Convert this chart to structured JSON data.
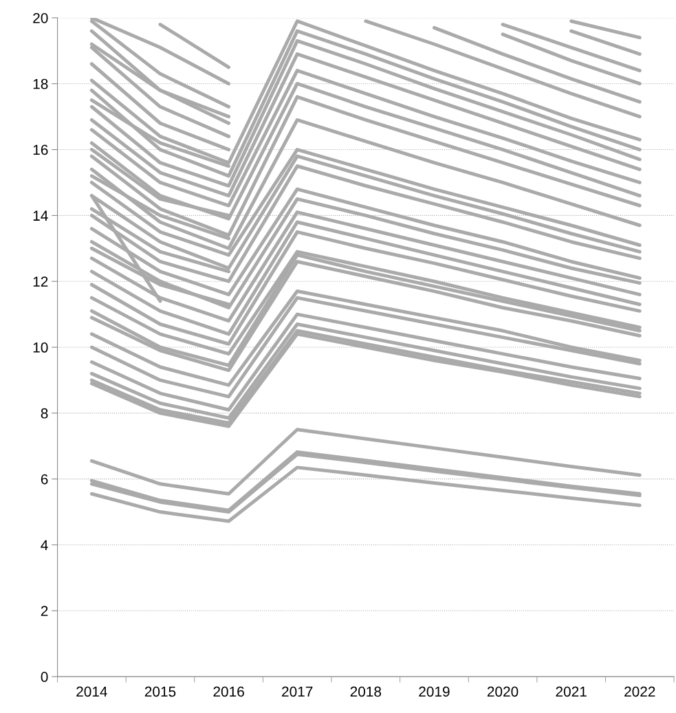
{
  "chart_data": {
    "type": "line",
    "categories": [
      "2014",
      "2015",
      "2016",
      "2017",
      "2018",
      "2019",
      "2020",
      "2021",
      "2022"
    ],
    "ylim": [
      0,
      20
    ],
    "yticks": [
      0,
      2,
      4,
      6,
      8,
      10,
      12,
      14,
      16,
      18,
      20
    ],
    "grid": "y",
    "marker": "none",
    "line_style": "solid",
    "series": [
      {
        "color": "#aaaaaa",
        "values": [
          6.55,
          5.85,
          5.55,
          7.5,
          7.22,
          6.94,
          6.66,
          6.38,
          6.12
        ]
      },
      {
        "color": "#aaaaaa",
        "values": [
          5.95,
          5.35,
          5.05,
          6.82,
          6.56,
          6.3,
          6.04,
          5.78,
          5.55
        ]
      },
      {
        "color": "#aaaaaa",
        "values": [
          5.85,
          5.3,
          5.0,
          6.75,
          6.5,
          6.24,
          5.99,
          5.74,
          5.5
        ]
      },
      {
        "color": "#aaaaaa",
        "values": [
          5.55,
          5.0,
          4.72,
          6.35,
          6.12,
          5.88,
          5.65,
          5.42,
          5.2
        ]
      },
      {
        "color": "#aaaaaa",
        "values": [
          8.9,
          8.0,
          7.6,
          10.4,
          10.0,
          9.6,
          9.25,
          8.85,
          8.5
        ]
      },
      {
        "color": "#aaaaaa",
        "values": [
          9.0,
          8.1,
          7.7,
          10.5,
          10.1,
          9.7,
          9.3,
          8.95,
          8.6
        ]
      },
      {
        "color": "#aaaaaa",
        "values": [
          9.2,
          8.3,
          7.85,
          10.7,
          10.3,
          9.9,
          9.5,
          9.1,
          8.75
        ]
      },
      {
        "color": "#aaaaaa",
        "values": [
          9.55,
          8.6,
          8.1,
          11.0,
          10.6,
          10.2,
          9.8,
          9.4,
          9.05
        ]
      },
      {
        "color": "#aaaaaa",
        "values": [
          10.0,
          9.0,
          8.5,
          11.5,
          11.1,
          10.7,
          10.3,
          9.9,
          9.5
        ]
      },
      {
        "color": "#aaaaaa",
        "values": [
          10.4,
          9.4,
          8.85,
          11.7,
          11.3,
          10.9,
          10.5,
          10.0,
          9.6
        ]
      },
      {
        "color": "#aaaaaa",
        "values": [
          10.9,
          9.9,
          9.3,
          12.6,
          12.15,
          11.7,
          11.2,
          10.8,
          10.35
        ]
      },
      {
        "color": "#aaaaaa",
        "values": [
          11.1,
          10.0,
          9.45,
          12.8,
          12.3,
          11.85,
          11.4,
          10.95,
          10.5
        ]
      },
      {
        "color": "#aaaaaa",
        "values": [
          11.5,
          10.4,
          9.8,
          12.9,
          12.45,
          12.0,
          11.5,
          11.05,
          10.6
        ]
      },
      {
        "color": "#aaaaaa",
        "values": [
          11.9,
          10.7,
          10.1,
          13.5,
          13.0,
          12.55,
          12.05,
          11.55,
          11.1
        ]
      },
      {
        "color": "#aaaaaa",
        "values": [
          12.3,
          11.1,
          10.4,
          13.8,
          13.3,
          12.8,
          12.3,
          11.8,
          11.3
        ]
      },
      {
        "color": "#aaaaaa",
        "values": [
          12.7,
          11.5,
          10.8,
          14.1,
          13.6,
          13.1,
          12.6,
          12.1,
          11.6
        ]
      },
      {
        "color": "#aaaaaa",
        "values": [
          13.2,
          12.0,
          11.2,
          14.5,
          14.0,
          13.45,
          12.95,
          12.4,
          11.95
        ]
      },
      {
        "color": "#aaaaaa",
        "values": [
          13.6,
          12.3,
          11.6,
          14.8,
          14.25,
          13.7,
          13.2,
          12.6,
          12.1
        ]
      },
      {
        "color": "#aaaaaa",
        "values": [
          14.0,
          12.6,
          12.0,
          15.5,
          14.9,
          14.35,
          13.8,
          13.2,
          12.7
        ]
      },
      {
        "color": "#aaaaaa",
        "values": [
          14.6,
          13.2,
          12.4,
          15.8,
          15.2,
          14.6,
          14.05,
          13.45,
          12.9
        ]
      },
      {
        "color": "#aaaaaa",
        "values": [
          14.6,
          11.4,
          null,
          null,
          null,
          null,
          null,
          null,
          null
        ]
      },
      {
        "color": "#aaaaaa",
        "values": [
          15.0,
          13.5,
          12.8,
          16.0,
          15.4,
          14.8,
          14.25,
          13.7,
          13.1
        ]
      },
      {
        "color": "#aaaaaa",
        "values": [
          15.4,
          13.8,
          13.0,
          16.9,
          16.25,
          15.6,
          15.0,
          14.35,
          13.7
        ]
      },
      {
        "color": "#aaaaaa",
        "values": [
          15.8,
          14.2,
          13.4,
          17.6,
          16.9,
          16.25,
          15.6,
          14.95,
          14.3
        ]
      },
      {
        "color": "#aaaaaa",
        "values": [
          16.2,
          14.6,
          13.9,
          18.0,
          17.3,
          16.65,
          16.0,
          15.3,
          14.6
        ]
      },
      {
        "color": "#aaaaaa",
        "values": [
          16.6,
          15.0,
          14.3,
          18.4,
          17.7,
          17.0,
          16.35,
          15.65,
          15.0
        ]
      },
      {
        "color": "#aaaaaa",
        "values": [
          16.9,
          15.3,
          14.6,
          18.9,
          18.2,
          17.5,
          16.8,
          16.1,
          15.4
        ]
      },
      {
        "color": "#aaaaaa",
        "values": [
          17.3,
          15.6,
          14.9,
          19.3,
          18.6,
          17.85,
          17.15,
          16.45,
          15.7
        ]
      },
      {
        "color": "#aaaaaa",
        "values": [
          17.8,
          16.0,
          15.2,
          19.6,
          18.9,
          18.15,
          17.45,
          16.7,
          16.0
        ]
      },
      {
        "color": "#aaaaaa",
        "values": [
          18.1,
          16.4,
          15.6,
          19.9,
          19.15,
          18.4,
          17.7,
          16.95,
          16.3
        ]
      },
      {
        "color": "#aaaaaa",
        "values": [
          18.6,
          16.8,
          16.0,
          null,
          19.9,
          19.2,
          18.45,
          17.7,
          17.0
        ]
      },
      {
        "color": "#aaaaaa",
        "values": [
          19.1,
          17.3,
          16.4,
          null,
          null,
          19.7,
          18.9,
          18.15,
          17.45
        ]
      },
      {
        "color": "#aaaaaa",
        "values": [
          19.6,
          17.8,
          16.8,
          null,
          null,
          null,
          19.5,
          18.7,
          18.0
        ]
      },
      {
        "color": "#aaaaaa",
        "values": [
          19.9,
          18.3,
          17.3,
          null,
          null,
          null,
          19.8,
          19.1,
          18.4
        ]
      },
      {
        "color": "#aaaaaa",
        "values": [
          20.0,
          19.1,
          18.0,
          null,
          null,
          null,
          null,
          19.6,
          18.9
        ]
      },
      {
        "color": "#aaaaaa",
        "values": [
          null,
          19.8,
          18.5,
          null,
          null,
          null,
          null,
          19.9,
          19.4
        ]
      },
      {
        "color": "#aaaaaa",
        "values": [
          13.0,
          11.9,
          11.3,
          null,
          null,
          null,
          null,
          null,
          null
        ]
      },
      {
        "color": "#aaaaaa",
        "values": [
          14.2,
          12.9,
          12.3,
          null,
          null,
          null,
          null,
          null,
          null
        ]
      },
      {
        "color": "#aaaaaa",
        "values": [
          15.2,
          14.0,
          13.3,
          null,
          null,
          null,
          null,
          null,
          null
        ]
      },
      {
        "color": "#aaaaaa",
        "values": [
          16.0,
          14.5,
          14.0,
          null,
          null,
          null,
          null,
          null,
          null
        ]
      },
      {
        "color": "#aaaaaa",
        "values": [
          17.5,
          16.2,
          15.5,
          null,
          null,
          null,
          null,
          null,
          null
        ]
      },
      {
        "color": "#aaaaaa",
        "values": [
          19.2,
          17.8,
          17.0,
          null,
          null,
          null,
          null,
          null,
          null
        ]
      }
    ]
  }
}
